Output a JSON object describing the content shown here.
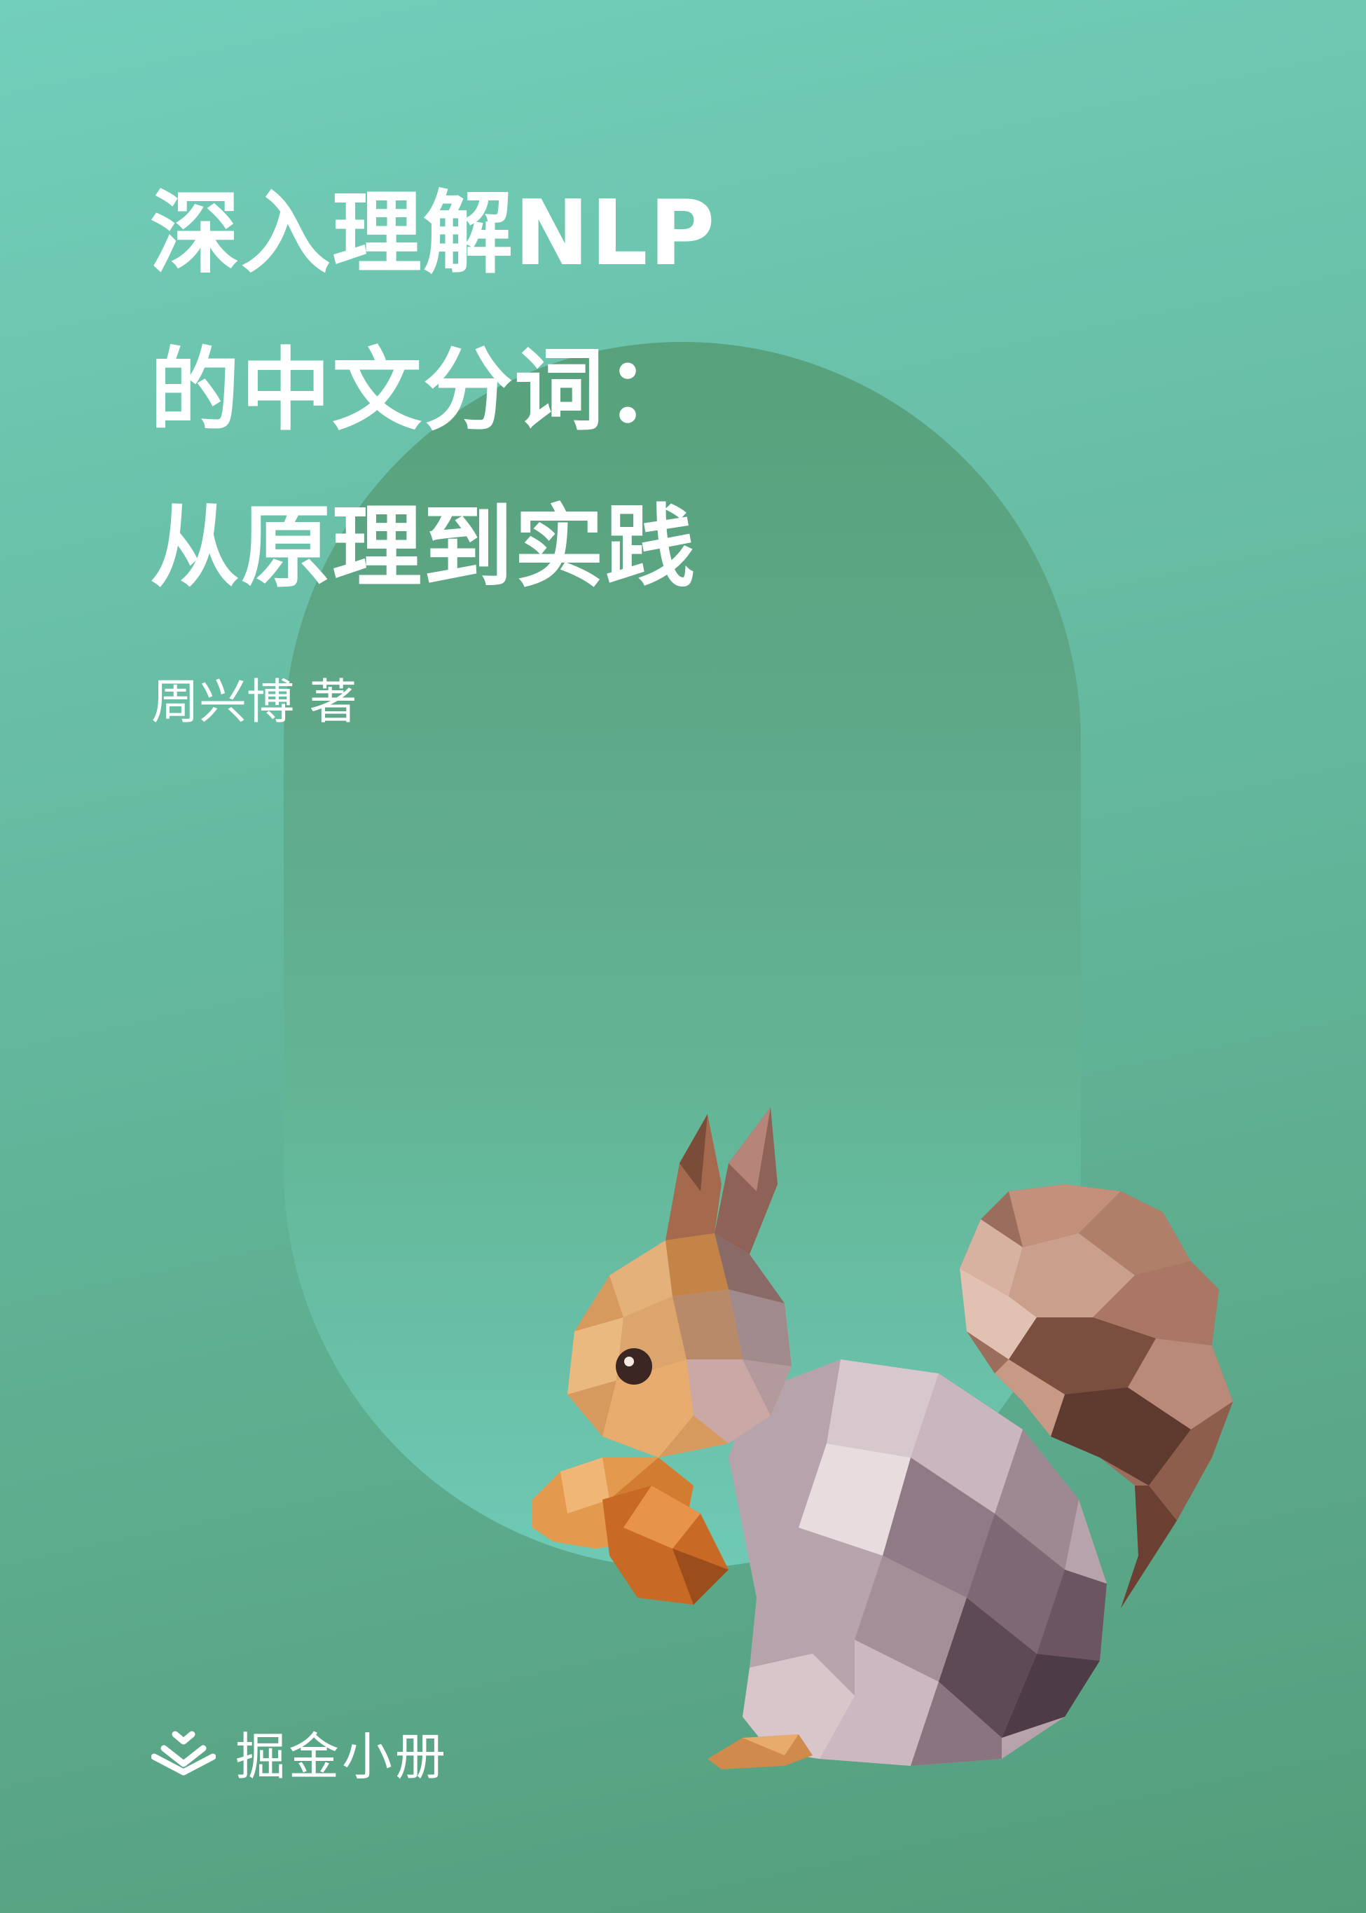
{
  "cover": {
    "title_lines": [
      "深入理解NLP",
      "的中文分词：",
      "从原理到实践"
    ],
    "author": "周兴博 著",
    "brand": {
      "name": "掘金小册",
      "icon": "juejin-chevron-logo-icon"
    },
    "illustration": "low-poly-squirrel",
    "colors": {
      "background_top": "#72cfbb",
      "background_bottom": "#549d7b",
      "arch_top": "#57a17c",
      "arch_bottom": "#6ec9b5",
      "text": "#ffffff"
    }
  }
}
